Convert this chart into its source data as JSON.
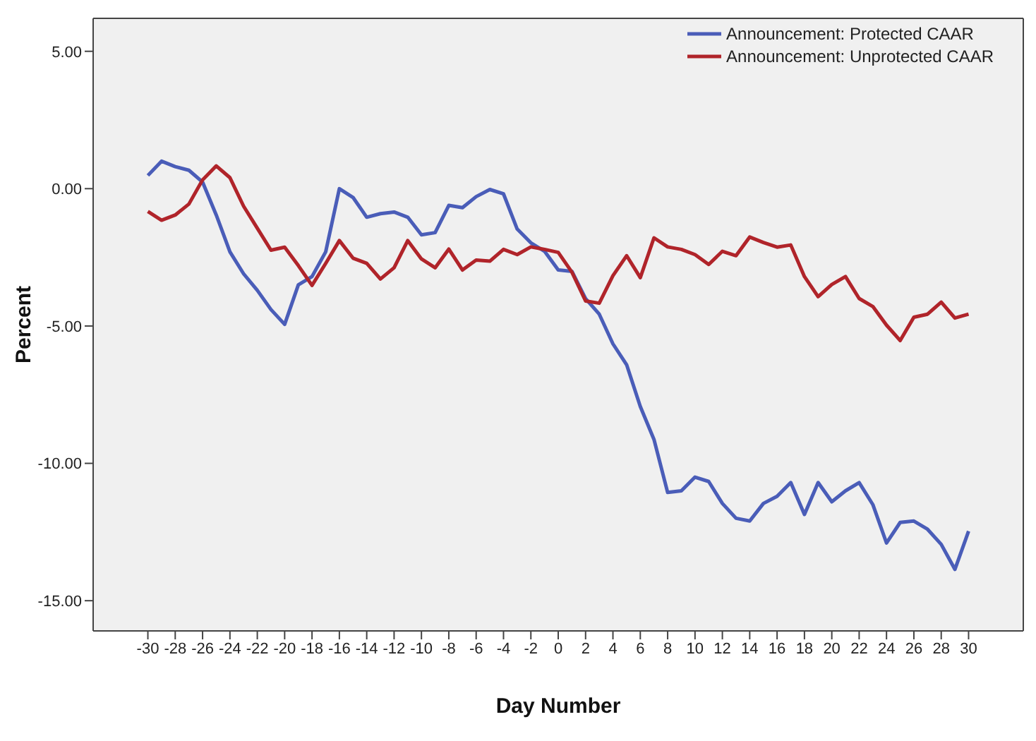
{
  "chart_data": {
    "type": "line",
    "xlabel": "Day Number",
    "ylabel": "Percent",
    "x": [
      -30,
      -29,
      -28,
      -27,
      -26,
      -25,
      -24,
      -23,
      -22,
      -21,
      -20,
      -19,
      -18,
      -17,
      -16,
      -15,
      -14,
      -13,
      -12,
      -11,
      -10,
      -9,
      -8,
      -7,
      -6,
      -5,
      -4,
      -3,
      -2,
      -1,
      0,
      1,
      2,
      3,
      4,
      5,
      6,
      7,
      8,
      9,
      10,
      11,
      12,
      13,
      14,
      15,
      16,
      17,
      18,
      19,
      20,
      21,
      22,
      23,
      24,
      25,
      26,
      27,
      28,
      29,
      30
    ],
    "series": [
      {
        "name": "Announcement: Protected CAAR",
        "color": "#4a5db8",
        "values": [
          0.48,
          1.0,
          0.8,
          0.67,
          0.24,
          -0.96,
          -2.3,
          -3.1,
          -3.7,
          -4.4,
          -4.94,
          -3.5,
          -3.2,
          -2.3,
          0.0,
          -0.32,
          -1.04,
          -0.91,
          -0.85,
          -1.04,
          -1.68,
          -1.6,
          -0.61,
          -0.69,
          -0.29,
          -0.03,
          -0.19,
          -1.47,
          -1.97,
          -2.28,
          -2.96,
          -3.01,
          -4.0,
          -4.57,
          -5.65,
          -6.41,
          -7.93,
          -9.13,
          -11.06,
          -11.0,
          -10.5,
          -10.66,
          -11.46,
          -12.0,
          -12.1,
          -11.46,
          -11.2,
          -10.7,
          -11.86,
          -10.7,
          -11.4,
          -11.0,
          -10.7,
          -11.5,
          -12.9,
          -12.15,
          -12.1,
          -12.4,
          -12.95,
          -13.86,
          -12.47
        ]
      },
      {
        "name": "Announcement: Unprotected CAAR",
        "color": "#b0242a",
        "values": [
          -0.83,
          -1.15,
          -0.96,
          -0.56,
          0.32,
          0.83,
          0.4,
          -0.64,
          -1.44,
          -2.24,
          -2.13,
          -2.8,
          -3.52,
          -2.72,
          -1.89,
          -2.53,
          -2.72,
          -3.29,
          -2.88,
          -1.89,
          -2.56,
          -2.88,
          -2.2,
          -2.96,
          -2.6,
          -2.64,
          -2.21,
          -2.4,
          -2.12,
          -2.21,
          -2.32,
          -3.04,
          -4.09,
          -4.17,
          -3.17,
          -2.44,
          -3.24,
          -1.79,
          -2.12,
          -2.21,
          -2.4,
          -2.76,
          -2.28,
          -2.44,
          -1.76,
          -1.96,
          -2.13,
          -2.05,
          -3.2,
          -3.93,
          -3.49,
          -3.2,
          -4.0,
          -4.29,
          -4.97,
          -5.53,
          -4.68,
          -4.57,
          -4.13,
          -4.71,
          -4.57
        ]
      }
    ],
    "xlim": [
      -34,
      34
    ],
    "xticks": [
      -30,
      -28,
      -26,
      -24,
      -22,
      -20,
      -18,
      -16,
      -14,
      -12,
      -10,
      -8,
      -6,
      -4,
      -2,
      0,
      2,
      4,
      6,
      8,
      10,
      12,
      14,
      16,
      18,
      20,
      22,
      24,
      26,
      28,
      30
    ],
    "ylim": [
      -16.1,
      6.2
    ],
    "yticks": [
      {
        "value": 5,
        "label": "5.00"
      },
      {
        "value": 0,
        "label": "0.00"
      },
      {
        "value": -5,
        "label": "-5.00"
      },
      {
        "value": -10,
        "label": "-10.00"
      },
      {
        "value": -15,
        "label": "-15.00"
      }
    ],
    "grid": false,
    "legend": "top right",
    "marker": "none",
    "line_style": "solid"
  }
}
